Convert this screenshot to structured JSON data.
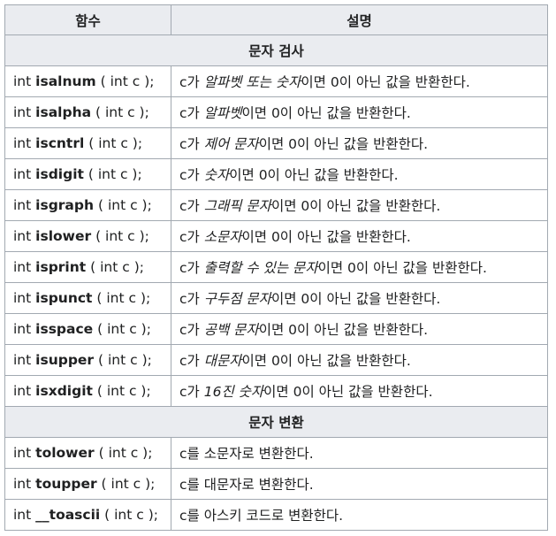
{
  "header": {
    "col_function": "함수",
    "col_description": "설명"
  },
  "sections": [
    {
      "title": "문자 검사",
      "rows": [
        {
          "prefix": "int",
          "name": "isalnum",
          "params": "( int c );",
          "d_pre": "c가 ",
          "d_em": "알파벳 또는 숫자",
          "d_post": "이면 0이 아닌 값을 반환한다."
        },
        {
          "prefix": "int",
          "name": "isalpha",
          "params": "( int c );",
          "d_pre": "c가 ",
          "d_em": "알파벳",
          "d_post": "이면 0이 아닌 값을 반환한다."
        },
        {
          "prefix": "int",
          "name": "iscntrl",
          "params": "( int c );",
          "d_pre": "c가 ",
          "d_em": "제어 문자",
          "d_post": "이면 0이 아닌 값을 반환한다."
        },
        {
          "prefix": "int",
          "name": "isdigit",
          "params": "( int c );",
          "d_pre": "c가 ",
          "d_em": "숫자",
          "d_post": "이면 0이 아닌 값을 반환한다."
        },
        {
          "prefix": "int",
          "name": "isgraph",
          "params": "( int c );",
          "d_pre": "c가 ",
          "d_em": "그래픽 문자",
          "d_post": "이면 0이 아닌 값을 반환한다."
        },
        {
          "prefix": "int",
          "name": "islower",
          "params": "( int c );",
          "d_pre": "c가 ",
          "d_em": "소문자",
          "d_post": "이면 0이 아닌 값을 반환한다."
        },
        {
          "prefix": "int",
          "name": "isprint",
          "params": "( int c );",
          "d_pre": "c가 ",
          "d_em": "출력할 수 있는 문자",
          "d_post": "이면 0이 아닌 값을 반환한다."
        },
        {
          "prefix": "int",
          "name": "ispunct",
          "params": "( int c );",
          "d_pre": "c가 ",
          "d_em": "구두점 문자",
          "d_post": "이면 0이 아닌 값을 반환한다."
        },
        {
          "prefix": "int",
          "name": "isspace",
          "params": "( int c );",
          "d_pre": "c가 ",
          "d_em": "공백 문자",
          "d_post": "이면 0이 아닌 값을 반환한다."
        },
        {
          "prefix": "int",
          "name": "isupper",
          "params": "( int c );",
          "d_pre": "c가 ",
          "d_em": "대문자",
          "d_post": "이면 0이 아닌 값을 반환한다."
        },
        {
          "prefix": "int",
          "name": "isxdigit",
          "params": "( int c );",
          "d_pre": "c가 ",
          "d_em": "16진 숫자",
          "d_post": "이면 0이 아닌 값을 반환한다."
        }
      ]
    },
    {
      "title": "문자 변환",
      "rows": [
        {
          "prefix": "int",
          "name": "tolower",
          "params": "( int c );",
          "d_pre": "c를 소문자로 변환한다.",
          "d_em": "",
          "d_post": ""
        },
        {
          "prefix": "int",
          "name": "toupper",
          "params": "( int c );",
          "d_pre": "c를 대문자로 변환한다.",
          "d_em": "",
          "d_post": ""
        },
        {
          "prefix": "int",
          "name": "__toascii",
          "params": "( int c );",
          "d_pre": "c를 아스키 코드로 변환한다.",
          "d_em": "",
          "d_post": ""
        }
      ]
    }
  ]
}
